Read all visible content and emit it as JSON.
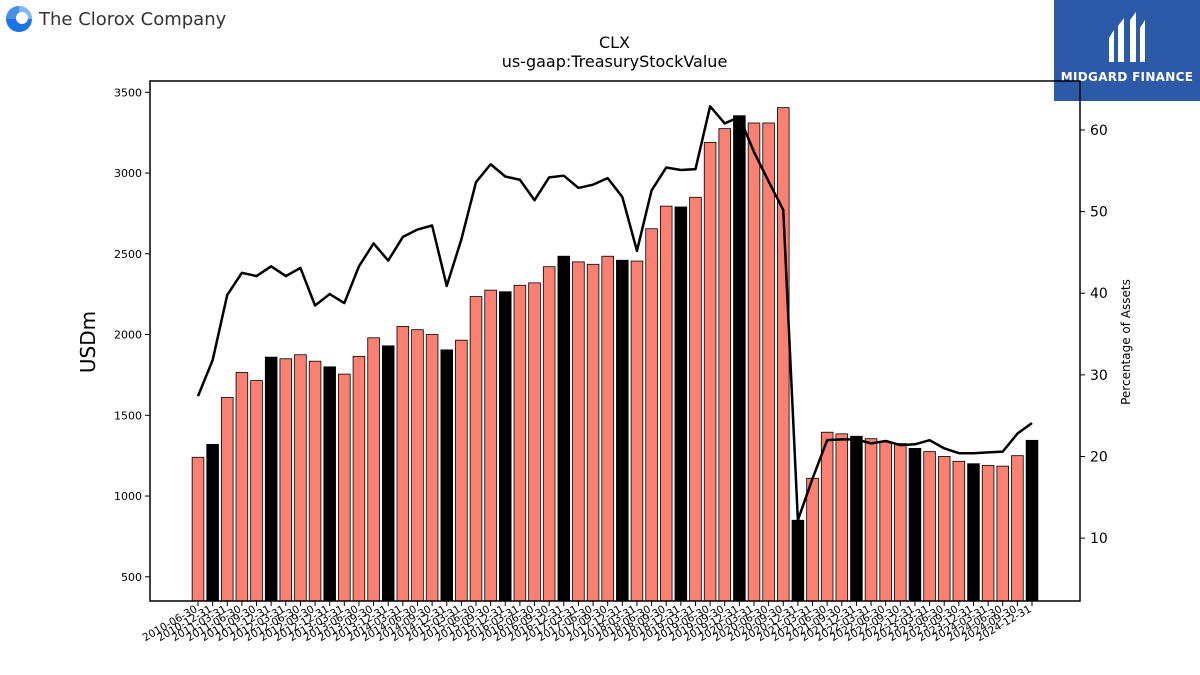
{
  "header": {
    "company": "The Clorox Company",
    "logo_icon": "clorox-logo-icon",
    "badge_text": "MIDGARD FINANCE",
    "badge_icon": "midgard-logo-icon",
    "badge_color": "#2d5aa8"
  },
  "chart_data": {
    "type": "bar",
    "title": "CLX",
    "subtitle": "us-gaap:TreasuryStockValue",
    "ylabel": "USDm",
    "y2label": "Percentage of Assets",
    "ylim": [
      350,
      3570
    ],
    "y2lim": [
      2.3,
      66.0
    ],
    "yticks": [
      500,
      1000,
      1500,
      2000,
      2500,
      3000,
      3500
    ],
    "y2ticks": [
      10,
      20,
      30,
      40,
      50,
      60
    ],
    "bar_colors": {
      "default": "#fa8072",
      "fiscal_year_end": "#000000"
    },
    "line_color": "#000000",
    "categories": [
      "2010-06-30",
      "2010-12-31",
      "2011-03-31",
      "2011-06-30",
      "2011-09-30",
      "2011-12-31",
      "2012-03-31",
      "2012-06-30",
      "2012-09-30",
      "2012-12-31",
      "2013-03-31",
      "2013-06-30",
      "2013-09-30",
      "2013-12-31",
      "2014-03-31",
      "2014-06-30",
      "2014-09-30",
      "2014-12-31",
      "2015-03-31",
      "2015-06-30",
      "2015-09-30",
      "2015-12-31",
      "2016-03-31",
      "2016-06-30",
      "2016-09-30",
      "2016-12-31",
      "2017-03-31",
      "2017-06-30",
      "2017-09-30",
      "2017-12-31",
      "2018-03-31",
      "2018-06-30",
      "2018-09-30",
      "2018-12-31",
      "2019-03-31",
      "2019-06-30",
      "2019-09-30",
      "2019-12-31",
      "2020-03-31",
      "2020-06-30",
      "2020-09-30",
      "2020-12-31",
      "2021-03-31",
      "2021-06-30",
      "2021-09-30",
      "2021-12-31",
      "2022-03-31",
      "2022-06-30",
      "2022-09-30",
      "2022-12-31",
      "2023-03-31",
      "2023-06-30",
      "2023-09-30",
      "2023-12-31",
      "2024-03-31",
      "2024-06-30",
      "2024-09-30",
      "2024-12-31"
    ],
    "series": [
      {
        "name": "TreasuryStockValue",
        "type": "bar",
        "values": [
          1240,
          1320,
          1610,
          1765,
          1715,
          1860,
          1850,
          1875,
          1835,
          1800,
          1755,
          1865,
          1980,
          1930,
          2050,
          2030,
          2000,
          1905,
          1965,
          2235,
          2275,
          2265,
          2305,
          2320,
          2420,
          2485,
          2450,
          2435,
          2485,
          2460,
          2455,
          2655,
          2795,
          2790,
          2850,
          3190,
          3275,
          3355,
          3310,
          3310,
          3405,
          850,
          1110,
          1395,
          1385,
          1370,
          1355,
          1335,
          1325,
          1295,
          1275,
          1245,
          1215,
          1200,
          1190,
          1185,
          1250,
          1345
        ],
        "highlight": [
          false,
          true,
          false,
          false,
          false,
          true,
          false,
          false,
          false,
          true,
          false,
          false,
          false,
          true,
          false,
          false,
          false,
          true,
          false,
          false,
          false,
          true,
          false,
          false,
          false,
          true,
          false,
          false,
          false,
          true,
          false,
          false,
          false,
          true,
          false,
          false,
          false,
          true,
          false,
          false,
          false,
          true,
          false,
          false,
          false,
          true,
          false,
          false,
          false,
          true,
          false,
          false,
          false,
          true,
          false,
          false,
          false,
          true
        ]
      },
      {
        "name": "Percentage of Assets",
        "type": "line",
        "axis": "right",
        "values": [
          27.4,
          31.8,
          39.8,
          42.5,
          42.1,
          43.3,
          42.1,
          43.1,
          38.5,
          39.9,
          38.8,
          43.3,
          46.1,
          44.0,
          46.9,
          47.8,
          48.3,
          40.9,
          46.6,
          53.6,
          55.8,
          54.3,
          53.9,
          51.4,
          54.2,
          54.4,
          52.9,
          53.3,
          54.1,
          51.8,
          45.2,
          52.6,
          55.4,
          55.1,
          55.2,
          62.9,
          60.8,
          61.6,
          57.3,
          53.7,
          50.2,
          12.2,
          17.3,
          22.0,
          22.1,
          22.1,
          21.6,
          21.9,
          21.4,
          21.5,
          22.0,
          21.0,
          20.4,
          20.4,
          20.5,
          20.6,
          22.8,
          24.1
        ]
      }
    ],
    "grid": false,
    "legend": "none"
  }
}
